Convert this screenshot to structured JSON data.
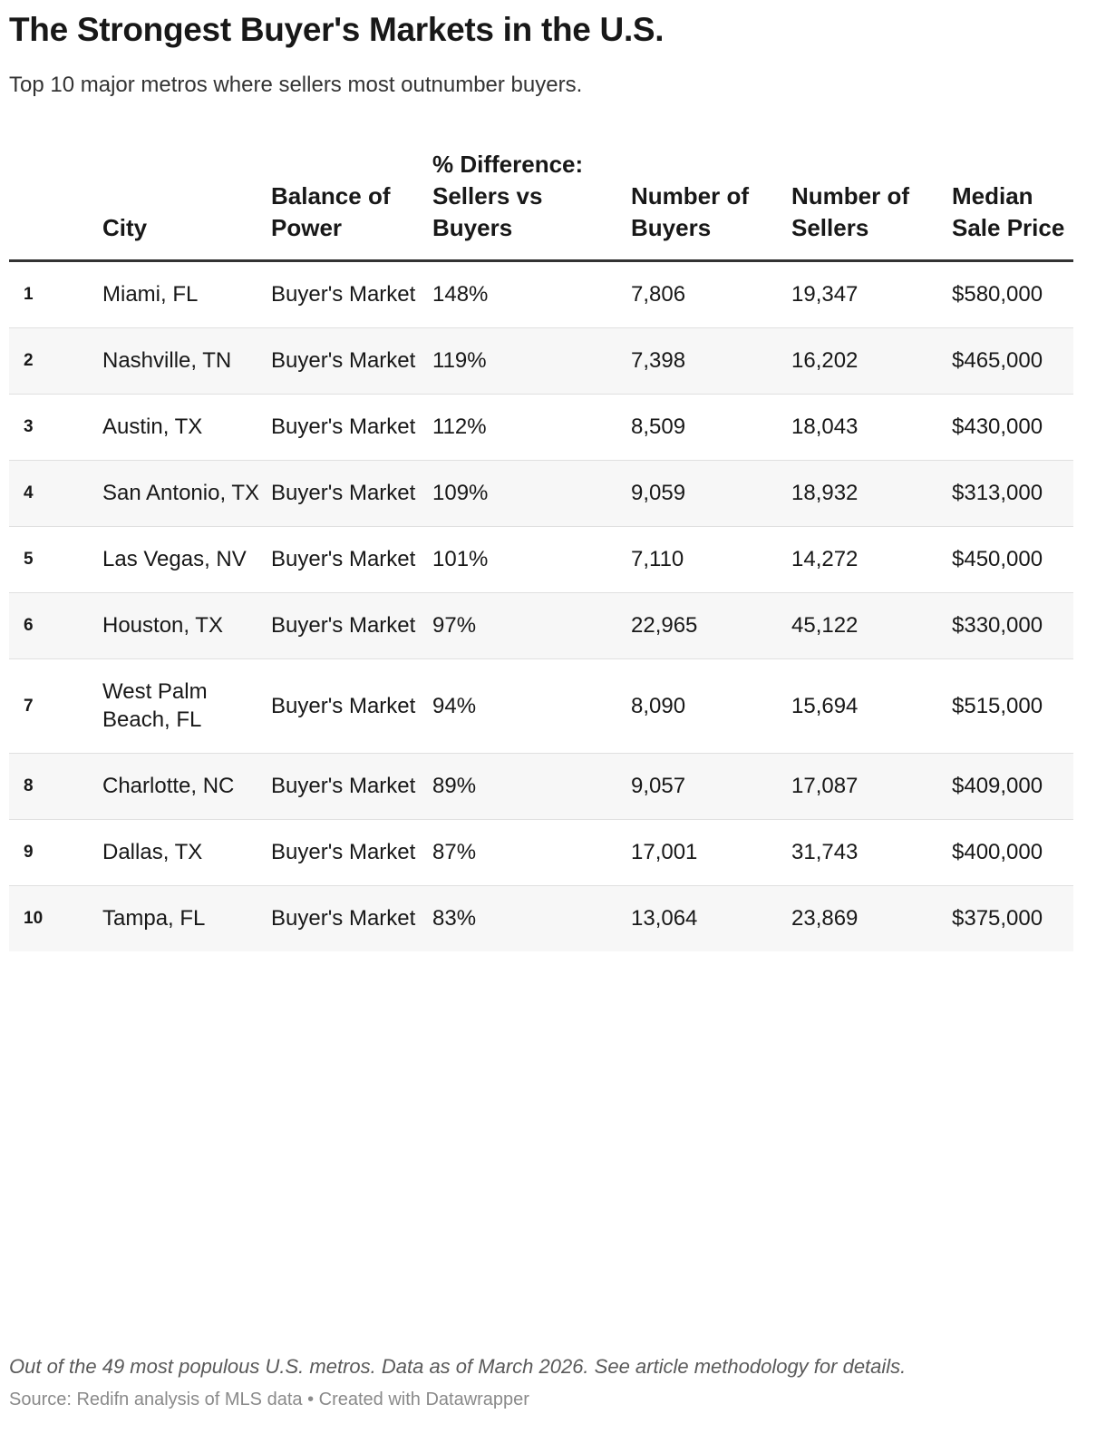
{
  "title": "The Strongest Buyer's Markets in the U.S.",
  "subtitle": "Top 10 major metros where sellers most outnumber buyers.",
  "chart_data": {
    "type": "table",
    "columns": [
      "",
      "City",
      "Balance of Power",
      "% Difference: Sellers vs Buyers",
      "Number of Buyers",
      "Number of Sellers",
      "Median Sale Price"
    ],
    "rows": [
      [
        "1",
        "Miami, FL",
        "Buyer's Market",
        "148%",
        "7,806",
        "19,347",
        "$580,000"
      ],
      [
        "2",
        "Nashville, TN",
        "Buyer's Market",
        "119%",
        "7,398",
        "16,202",
        "$465,000"
      ],
      [
        "3",
        "Austin, TX",
        "Buyer's Market",
        "112%",
        "8,509",
        "18,043",
        "$430,000"
      ],
      [
        "4",
        "San Antonio, TX",
        "Buyer's Market",
        "109%",
        "9,059",
        "18,932",
        "$313,000"
      ],
      [
        "5",
        "Las Vegas, NV",
        "Buyer's Market",
        "101%",
        "7,110",
        "14,272",
        "$450,000"
      ],
      [
        "6",
        "Houston, TX",
        "Buyer's Market",
        "97%",
        "22,965",
        "45,122",
        "$330,000"
      ],
      [
        "7",
        "West Palm Beach, FL",
        "Buyer's Market",
        "94%",
        "8,090",
        "15,694",
        "$515,000"
      ],
      [
        "8",
        "Charlotte, NC",
        "Buyer's Market",
        "89%",
        "9,057",
        "17,087",
        "$409,000"
      ],
      [
        "9",
        "Dallas, TX",
        "Buyer's Market",
        "87%",
        "17,001",
        "31,743",
        "$400,000"
      ],
      [
        "10",
        "Tampa, FL",
        "Buyer's Market",
        "83%",
        "13,064",
        "23,869",
        "$375,000"
      ]
    ]
  },
  "notes": "Out of the 49 most populous U.S. metros. Data as of March 2026. See article methodology for details.",
  "source": "Source: Redifn analysis of MLS data • Created with Datawrapper"
}
